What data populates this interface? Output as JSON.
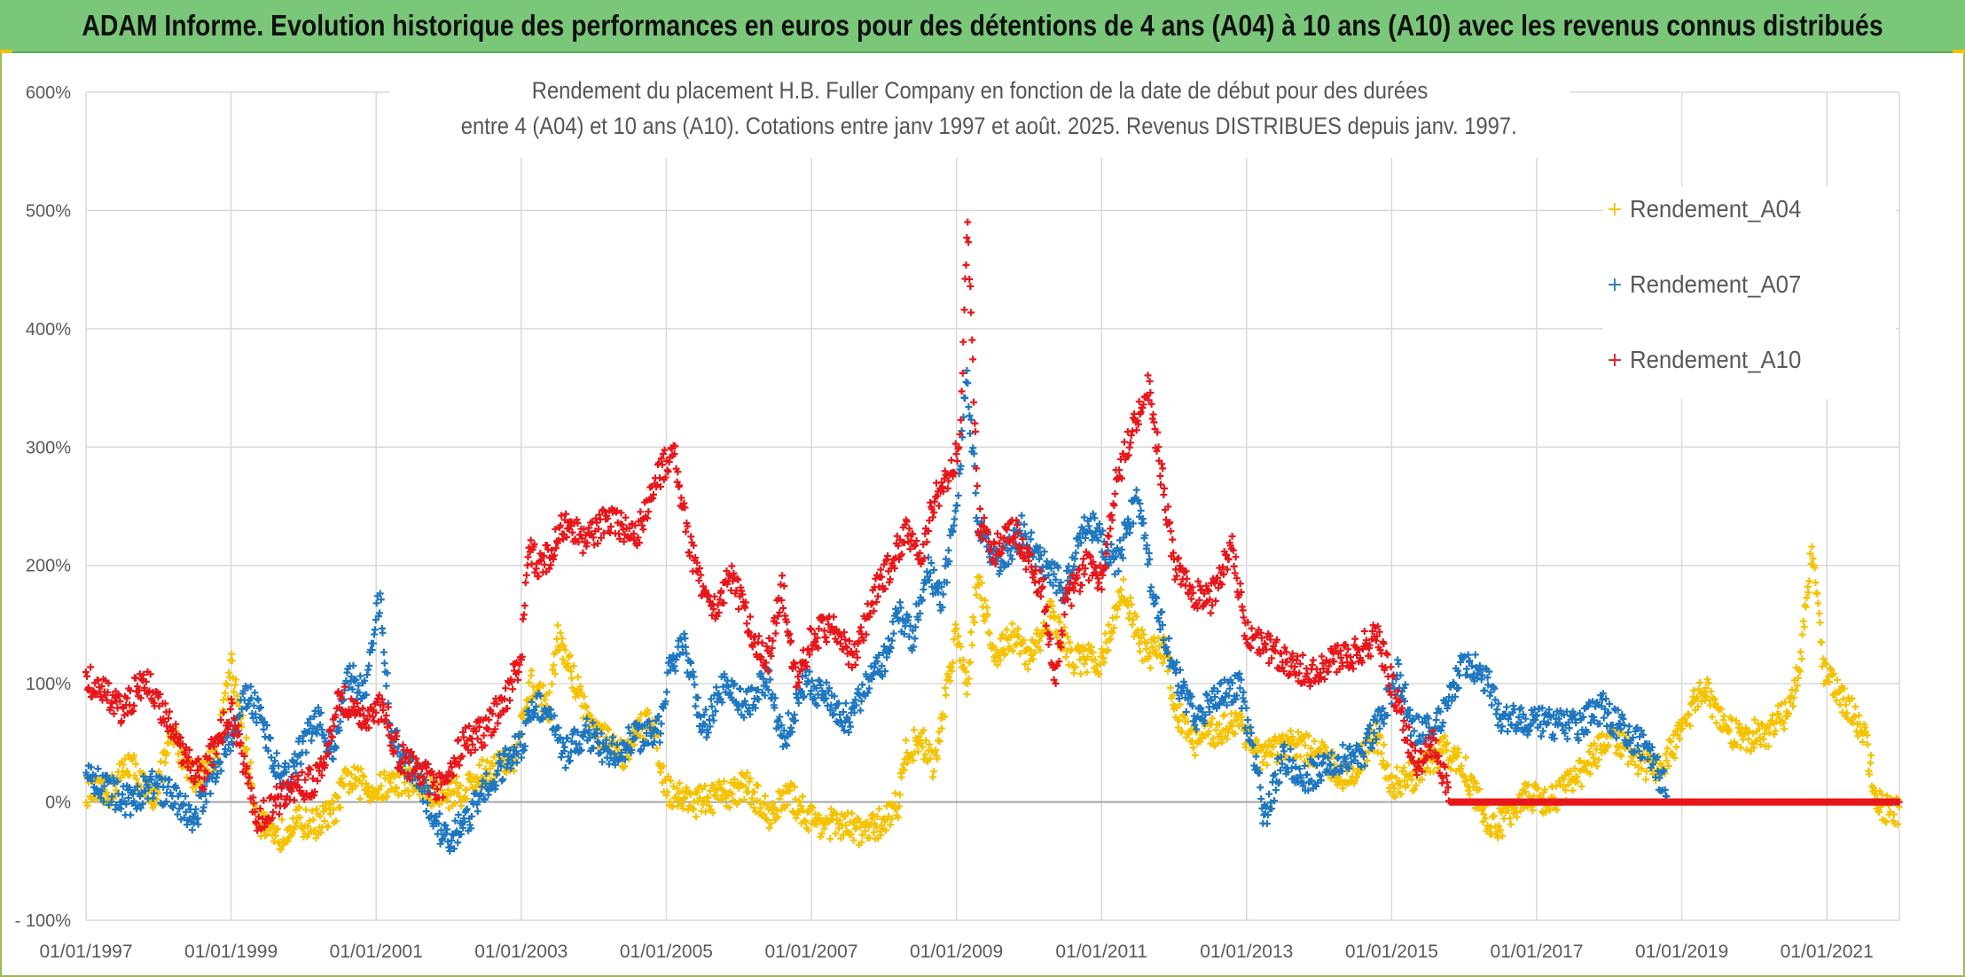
{
  "banner": {
    "text": "ADAM Informe. Evolution historique des performances en euros pour des détentions de 4 ans (A04) à 10 ans (A10) avec les revenus connus distribués"
  },
  "chart_data": {
    "type": "scatter",
    "title_lines": [
      "Rendement du placement H.B. Fuller Company en fonction de la date de début pour des durées",
      "entre 4 (A04) et 10 ans (A10). Cotations entre janv 1997 et août. 2025. Revenus DISTRIBUES depuis janv. 1997."
    ],
    "xlabel": "",
    "ylabel": "",
    "x_range": [
      "1997-01-01",
      "2022-01-01"
    ],
    "x_ticks": [
      "01/01/1997",
      "01/01/1999",
      "01/01/2001",
      "01/01/2003",
      "01/01/2005",
      "01/01/2007",
      "01/01/2009",
      "01/01/2011",
      "01/01/2013",
      "01/01/2015",
      "01/01/2017",
      "01/01/2019",
      "01/01/2021"
    ],
    "x_tick_years": [
      1997,
      1999,
      2001,
      2003,
      2005,
      2007,
      2009,
      2011,
      2013,
      2015,
      2017,
      2019,
      2021
    ],
    "ylim": [
      -100,
      600
    ],
    "y_ticks": [
      -100,
      0,
      100,
      200,
      300,
      400,
      500,
      600
    ],
    "y_tick_labels": [
      "- 100%",
      "0%",
      "100%",
      "200%",
      "300%",
      "400%",
      "500%",
      "600%"
    ],
    "grid": true,
    "legend_position": "top-right",
    "series": [
      {
        "name": "Rendement_A04",
        "color": "#f5c200",
        "keypoints": [
          [
            1997.0,
            10
          ],
          [
            1997.3,
            5
          ],
          [
            1997.6,
            35
          ],
          [
            1997.9,
            0
          ],
          [
            1998.2,
            55
          ],
          [
            1998.5,
            20
          ],
          [
            1998.8,
            40
          ],
          [
            1999.0,
            115
          ],
          [
            1999.15,
            65
          ],
          [
            1999.35,
            -10
          ],
          [
            1999.6,
            -35
          ],
          [
            1999.85,
            -15
          ],
          [
            2000.1,
            -20
          ],
          [
            2000.4,
            -10
          ],
          [
            2000.6,
            20
          ],
          [
            2001.0,
            10
          ],
          [
            2001.4,
            20
          ],
          [
            2001.8,
            5
          ],
          [
            2002.2,
            10
          ],
          [
            2002.6,
            30
          ],
          [
            2002.9,
            35
          ],
          [
            2003.15,
            100
          ],
          [
            2003.4,
            80
          ],
          [
            2003.5,
            140
          ],
          [
            2003.75,
            100
          ],
          [
            2004.0,
            60
          ],
          [
            2004.4,
            40
          ],
          [
            2004.8,
            75
          ],
          [
            2005.0,
            10
          ],
          [
            2005.4,
            0
          ],
          [
            2005.8,
            5
          ],
          [
            2006.1,
            15
          ],
          [
            2006.4,
            -10
          ],
          [
            2006.7,
            5
          ],
          [
            2007.0,
            -15
          ],
          [
            2007.4,
            -20
          ],
          [
            2007.8,
            -25
          ],
          [
            2008.0,
            -15
          ],
          [
            2008.2,
            0
          ],
          [
            2008.3,
            40
          ],
          [
            2008.5,
            55
          ],
          [
            2008.7,
            30
          ],
          [
            2008.85,
            90
          ],
          [
            2009.0,
            145
          ],
          [
            2009.15,
            100
          ],
          [
            2009.3,
            195
          ],
          [
            2009.5,
            125
          ],
          [
            2009.8,
            140
          ],
          [
            2010.0,
            120
          ],
          [
            2010.3,
            160
          ],
          [
            2010.6,
            120
          ],
          [
            2011.0,
            120
          ],
          [
            2011.3,
            180
          ],
          [
            2011.6,
            125
          ],
          [
            2011.9,
            130
          ],
          [
            2012.0,
            80
          ],
          [
            2012.3,
            50
          ],
          [
            2012.6,
            60
          ],
          [
            2012.9,
            70
          ],
          [
            2013.2,
            35
          ],
          [
            2013.6,
            50
          ],
          [
            2014.0,
            40
          ],
          [
            2014.4,
            20
          ],
          [
            2014.8,
            55
          ],
          [
            2015.0,
            15
          ],
          [
            2015.4,
            25
          ],
          [
            2015.7,
            45
          ],
          [
            2016.0,
            30
          ],
          [
            2016.2,
            0
          ],
          [
            2016.4,
            -25
          ],
          [
            2016.8,
            5
          ],
          [
            2017.2,
            0
          ],
          [
            2017.6,
            25
          ],
          [
            2018.0,
            55
          ],
          [
            2018.4,
            35
          ],
          [
            2018.7,
            25
          ],
          [
            2019.0,
            60
          ],
          [
            2019.3,
            100
          ],
          [
            2019.6,
            60
          ],
          [
            2019.9,
            55
          ],
          [
            2020.2,
            60
          ],
          [
            2020.5,
            80
          ],
          [
            2020.65,
            130
          ],
          [
            2020.8,
            220
          ],
          [
            2020.95,
            110
          ],
          [
            2021.2,
            90
          ],
          [
            2021.5,
            60
          ],
          [
            2021.7,
            0
          ],
          [
            2021.9,
            -10
          ],
          [
            2022.0,
            -5
          ]
        ]
      },
      {
        "name": "Rendement_A07",
        "color": "#1f77c0",
        "keypoints": [
          [
            1997.0,
            25
          ],
          [
            1997.3,
            10
          ],
          [
            1997.6,
            0
          ],
          [
            1997.9,
            15
          ],
          [
            1998.2,
            5
          ],
          [
            1998.5,
            -15
          ],
          [
            1998.75,
            25
          ],
          [
            1999.0,
            55
          ],
          [
            1999.2,
            90
          ],
          [
            1999.4,
            75
          ],
          [
            1999.6,
            30
          ],
          [
            1999.8,
            20
          ],
          [
            2000.0,
            50
          ],
          [
            2000.2,
            70
          ],
          [
            2000.4,
            40
          ],
          [
            2000.6,
            110
          ],
          [
            2000.85,
            90
          ],
          [
            2001.05,
            175
          ],
          [
            2001.2,
            60
          ],
          [
            2001.4,
            30
          ],
          [
            2001.6,
            20
          ],
          [
            2001.8,
            -15
          ],
          [
            2002.0,
            -35
          ],
          [
            2002.3,
            -10
          ],
          [
            2002.6,
            20
          ],
          [
            2003.0,
            50
          ],
          [
            2003.2,
            85
          ],
          [
            2003.4,
            70
          ],
          [
            2003.6,
            40
          ],
          [
            2003.9,
            60
          ],
          [
            2004.2,
            40
          ],
          [
            2004.6,
            55
          ],
          [
            2004.9,
            60
          ],
          [
            2005.05,
            120
          ],
          [
            2005.25,
            130
          ],
          [
            2005.5,
            60
          ],
          [
            2005.8,
            100
          ],
          [
            2006.1,
            80
          ],
          [
            2006.4,
            105
          ],
          [
            2006.6,
            50
          ],
          [
            2006.9,
            100
          ],
          [
            2007.2,
            90
          ],
          [
            2007.5,
            70
          ],
          [
            2007.8,
            100
          ],
          [
            2008.0,
            120
          ],
          [
            2008.2,
            160
          ],
          [
            2008.4,
            140
          ],
          [
            2008.6,
            200
          ],
          [
            2008.8,
            170
          ],
          [
            2009.0,
            250
          ],
          [
            2009.15,
            360
          ],
          [
            2009.3,
            230
          ],
          [
            2009.6,
            200
          ],
          [
            2009.9,
            230
          ],
          [
            2010.2,
            200
          ],
          [
            2010.5,
            180
          ],
          [
            2010.8,
            240
          ],
          [
            2011.0,
            220
          ],
          [
            2011.2,
            200
          ],
          [
            2011.5,
            260
          ],
          [
            2011.7,
            180
          ],
          [
            2012.0,
            110
          ],
          [
            2012.3,
            70
          ],
          [
            2012.6,
            90
          ],
          [
            2012.9,
            100
          ],
          [
            2013.1,
            40
          ],
          [
            2013.25,
            -15
          ],
          [
            2013.5,
            40
          ],
          [
            2013.8,
            20
          ],
          [
            2014.2,
            35
          ],
          [
            2014.6,
            40
          ],
          [
            2014.9,
            80
          ],
          [
            2015.1,
            110
          ],
          [
            2015.3,
            60
          ],
          [
            2015.6,
            60
          ],
          [
            2015.8,
            90
          ],
          [
            2016.0,
            120
          ],
          [
            2016.3,
            105
          ],
          [
            2016.5,
            70
          ],
          [
            2016.8,
            70
          ],
          [
            2017.2,
            65
          ],
          [
            2017.6,
            65
          ],
          [
            2017.9,
            80
          ],
          [
            2018.2,
            60
          ],
          [
            2018.5,
            45
          ],
          [
            2018.7,
            20
          ],
          [
            2018.8,
            10
          ]
        ]
      },
      {
        "name": "Rendement_A10",
        "color": "#e8161a",
        "keypoints": [
          [
            1997.0,
            105
          ],
          [
            1997.2,
            95
          ],
          [
            1997.5,
            75
          ],
          [
            1997.8,
            105
          ],
          [
            1998.0,
            85
          ],
          [
            1998.3,
            45
          ],
          [
            1998.6,
            20
          ],
          [
            1998.85,
            60
          ],
          [
            1999.0,
            75
          ],
          [
            1999.15,
            40
          ],
          [
            1999.35,
            -15
          ],
          [
            1999.6,
            0
          ],
          [
            1999.9,
            10
          ],
          [
            2000.2,
            20
          ],
          [
            2000.5,
            90
          ],
          [
            2000.8,
            70
          ],
          [
            2001.1,
            80
          ],
          [
            2001.3,
            40
          ],
          [
            2001.6,
            25
          ],
          [
            2001.9,
            10
          ],
          [
            2002.2,
            50
          ],
          [
            2002.5,
            60
          ],
          [
            2002.8,
            90
          ],
          [
            2003.0,
            120
          ],
          [
            2003.1,
            210
          ],
          [
            2003.3,
            200
          ],
          [
            2003.6,
            235
          ],
          [
            2003.9,
            220
          ],
          [
            2004.2,
            240
          ],
          [
            2004.6,
            225
          ],
          [
            2004.85,
            270
          ],
          [
            2005.1,
            300
          ],
          [
            2005.3,
            220
          ],
          [
            2005.6,
            160
          ],
          [
            2005.9,
            190
          ],
          [
            2006.2,
            140
          ],
          [
            2006.4,
            120
          ],
          [
            2006.6,
            180
          ],
          [
            2006.8,
            100
          ],
          [
            2007.0,
            140
          ],
          [
            2007.3,
            150
          ],
          [
            2007.6,
            120
          ],
          [
            2007.9,
            180
          ],
          [
            2008.1,
            200
          ],
          [
            2008.3,
            230
          ],
          [
            2008.5,
            200
          ],
          [
            2008.7,
            260
          ],
          [
            2008.9,
            270
          ],
          [
            2009.05,
            310
          ],
          [
            2009.15,
            500
          ],
          [
            2009.3,
            240
          ],
          [
            2009.5,
            210
          ],
          [
            2009.8,
            230
          ],
          [
            2010.0,
            200
          ],
          [
            2010.2,
            180
          ],
          [
            2010.35,
            100
          ],
          [
            2010.5,
            170
          ],
          [
            2010.8,
            200
          ],
          [
            2011.0,
            190
          ],
          [
            2011.2,
            270
          ],
          [
            2011.45,
            320
          ],
          [
            2011.65,
            350
          ],
          [
            2011.8,
            290
          ],
          [
            2012.0,
            200
          ],
          [
            2012.2,
            180
          ],
          [
            2012.5,
            170
          ],
          [
            2012.8,
            220
          ],
          [
            2013.0,
            140
          ],
          [
            2013.3,
            130
          ],
          [
            2013.6,
            115
          ],
          [
            2013.9,
            110
          ],
          [
            2014.2,
            120
          ],
          [
            2014.5,
            125
          ],
          [
            2014.8,
            140
          ],
          [
            2015.0,
            100
          ],
          [
            2015.2,
            60
          ],
          [
            2015.35,
            30
          ],
          [
            2015.6,
            50
          ],
          [
            2015.8,
            0
          ],
          [
            2022.0,
            0
          ]
        ]
      }
    ]
  }
}
